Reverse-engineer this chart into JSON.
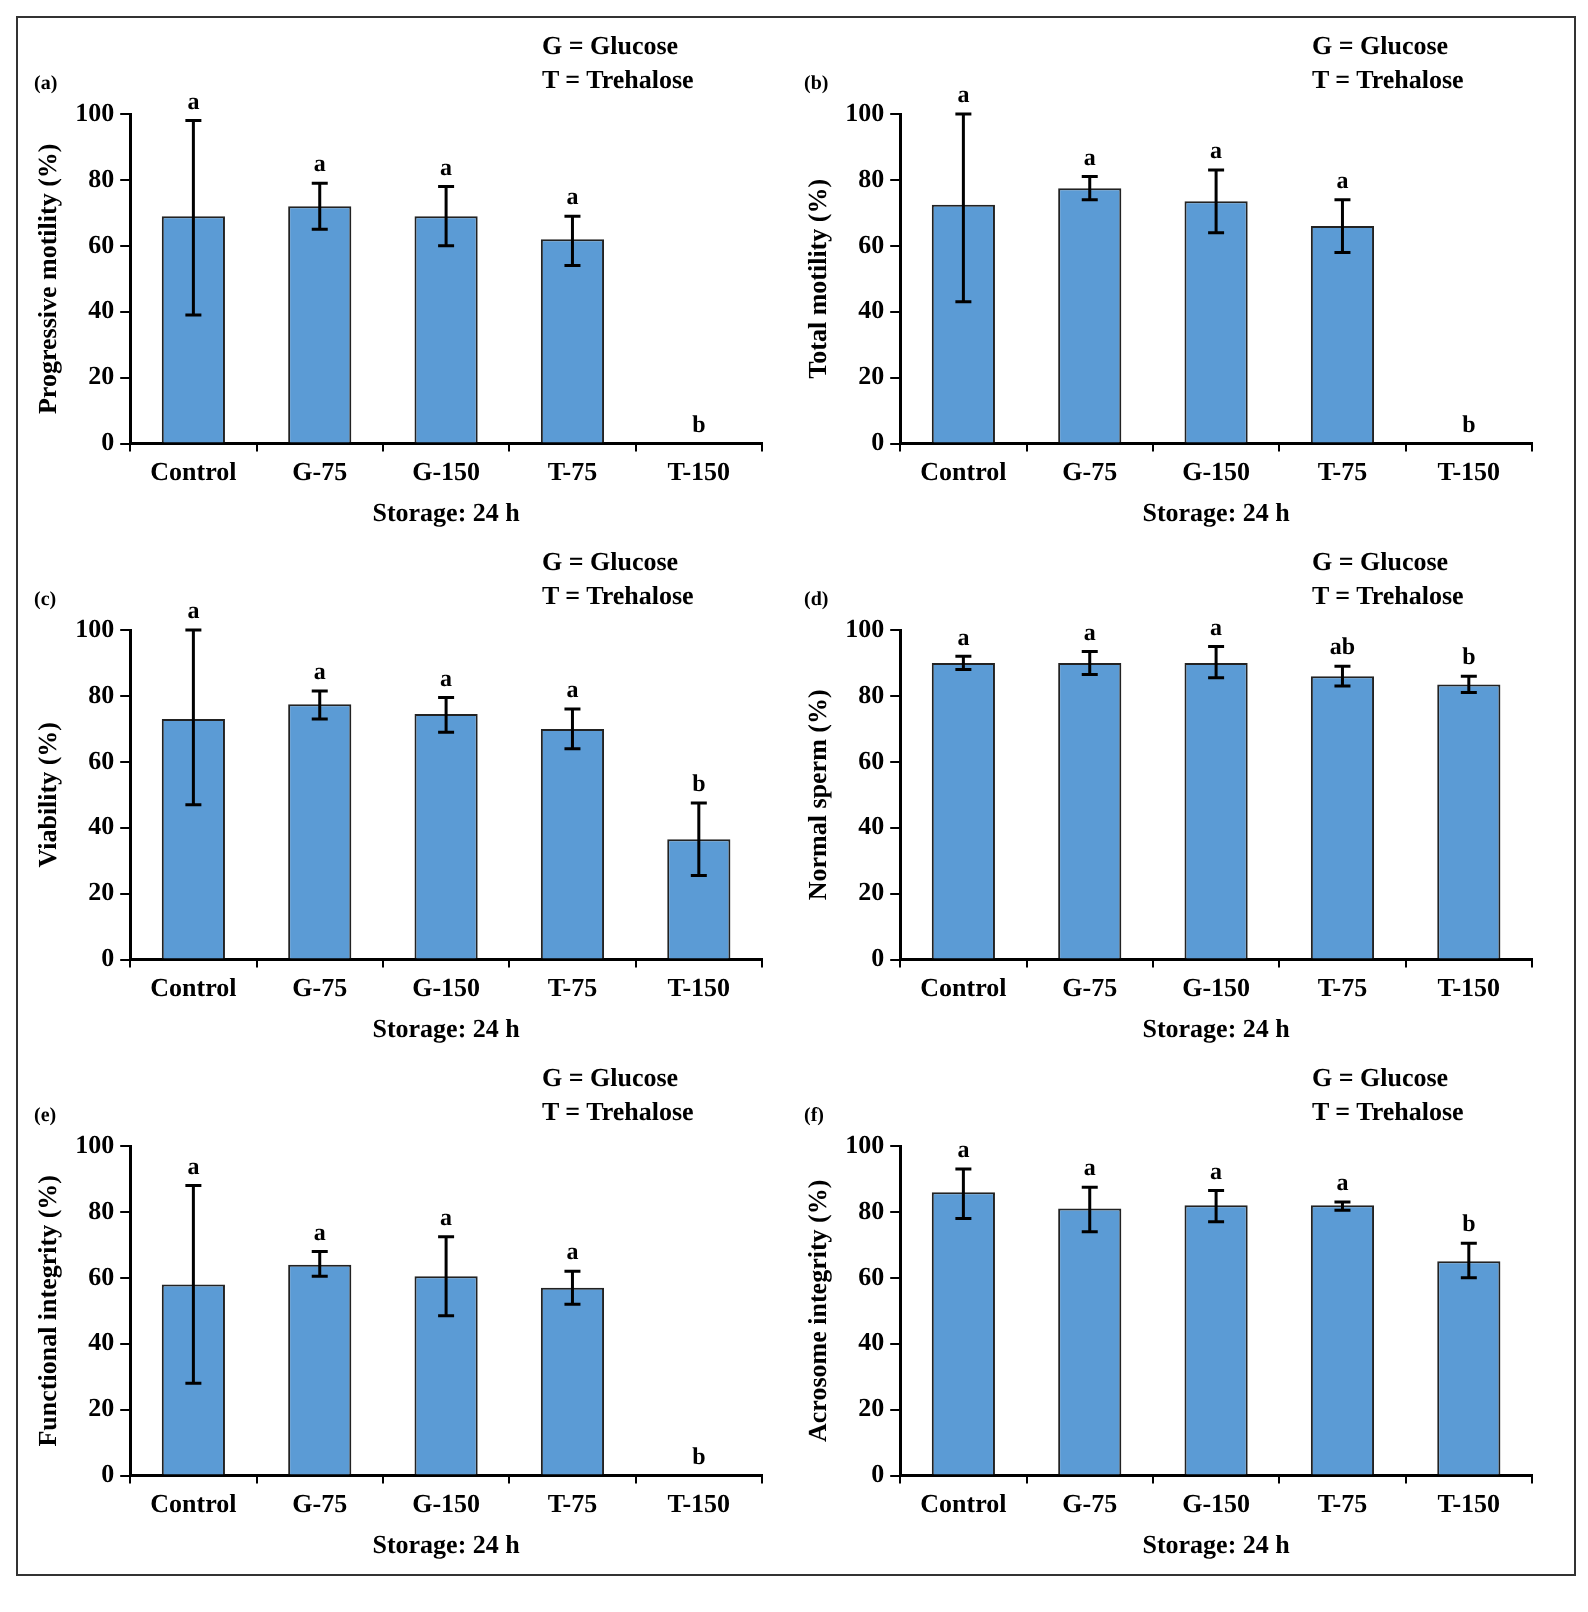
{
  "chart_data": [
    {
      "type": "bar",
      "ylabel": "Progressive motility (%)",
      "xlabel": "Storage: 24 h",
      "categories": [
        "Control",
        "G-75",
        "G-150",
        "T-75",
        "T-150"
      ],
      "values": [
        69,
        72,
        69,
        62,
        0
      ],
      "errors": [
        [
          39,
          98
        ],
        [
          65,
          79
        ],
        [
          60,
          78
        ],
        [
          54,
          69
        ],
        null
      ],
      "color": "#5b9bd5",
      "ylim": [
        0,
        100
      ],
      "yticks": [
        0,
        20,
        40,
        60,
        80,
        100
      ],
      "annotations": [
        "(a)",
        "G = Glucose",
        "T = Trehalose",
        {
          "text": "a",
          "x": "Control",
          "y": 98
        },
        {
          "text": "a",
          "x": "G-75",
          "y": 79
        },
        {
          "text": "a",
          "x": "G-150",
          "y": 78
        },
        {
          "text": "a",
          "x": "T-75",
          "y": 69
        },
        {
          "text": "b",
          "x": "T-150",
          "y": 0
        }
      ]
    },
    {
      "type": "bar",
      "ylabel": "Total motility (%)",
      "xlabel": "Storage: 24 h",
      "categories": [
        "Control",
        "G-75",
        "G-150",
        "T-75",
        "T-150"
      ],
      "values": [
        72.5,
        77.5,
        73.5,
        66,
        0
      ],
      "errors": [
        [
          43,
          100
        ],
        [
          74,
          81
        ],
        [
          64,
          83
        ],
        [
          58,
          74
        ],
        null
      ],
      "color": "#5b9bd5",
      "ylim": [
        0,
        100
      ],
      "yticks": [
        0,
        20,
        40,
        60,
        80,
        100
      ],
      "annotations": [
        "(b)",
        "G = Glucose",
        "T = Trehalose",
        {
          "text": "a",
          "x": "Control",
          "y": 100
        },
        {
          "text": "a",
          "x": "G-75",
          "y": 81
        },
        {
          "text": "a",
          "x": "G-150",
          "y": 83
        },
        {
          "text": "a",
          "x": "T-75",
          "y": 74
        },
        {
          "text": "b",
          "x": "T-150",
          "y": 0
        }
      ]
    },
    {
      "type": "bar",
      "ylabel": "Viability (%)",
      "xlabel": "Storage: 24 h",
      "categories": [
        "Control",
        "G-75",
        "G-150",
        "T-75",
        "T-150"
      ],
      "values": [
        73,
        77.5,
        74.5,
        70,
        36.5
      ],
      "errors": [
        [
          47,
          100
        ],
        [
          73,
          81.5
        ],
        [
          69,
          79.5
        ],
        [
          64,
          76
        ],
        [
          25.5,
          47.5
        ]
      ],
      "color": "#5b9bd5",
      "ylim": [
        0,
        100
      ],
      "yticks": [
        0,
        20,
        40,
        60,
        80,
        100
      ],
      "annotations": [
        "(c)",
        "G = Glucose",
        "T = Trehalose",
        {
          "text": "a",
          "x": "Control",
          "y": 100
        },
        {
          "text": "a",
          "x": "G-75",
          "y": 81.5
        },
        {
          "text": "a",
          "x": "G-150",
          "y": 79.5
        },
        {
          "text": "a",
          "x": "T-75",
          "y": 76
        },
        {
          "text": "b",
          "x": "T-150",
          "y": 47.5
        }
      ]
    },
    {
      "type": "bar",
      "ylabel": "Normal sperm (%)",
      "xlabel": "Storage: 24 h",
      "categories": [
        "Control",
        "G-75",
        "G-150",
        "T-75",
        "T-150"
      ],
      "values": [
        90,
        90,
        90,
        86,
        83.5
      ],
      "errors": [
        [
          88,
          92
        ],
        [
          86.5,
          93.5
        ],
        [
          85.5,
          95
        ],
        [
          83,
          89
        ],
        [
          81,
          86
        ]
      ],
      "color": "#5b9bd5",
      "ylim": [
        0,
        100
      ],
      "yticks": [
        0,
        20,
        40,
        60,
        80,
        100
      ],
      "annotations": [
        "(d)",
        "G = Glucose",
        "T = Trehalose",
        {
          "text": "a",
          "x": "Control",
          "y": 92
        },
        {
          "text": "a",
          "x": "G-75",
          "y": 93.5
        },
        {
          "text": "a",
          "x": "G-150",
          "y": 95
        },
        {
          "text": "ab",
          "x": "T-75",
          "y": 89
        },
        {
          "text": "b",
          "x": "T-150",
          "y": 86
        }
      ]
    },
    {
      "type": "bar",
      "ylabel": "Functional integrity (%)",
      "xlabel": "Storage: 24 h",
      "categories": [
        "Control",
        "G-75",
        "G-150",
        "T-75",
        "T-150"
      ],
      "values": [
        58,
        64,
        60.5,
        57,
        0
      ],
      "errors": [
        [
          28,
          88
        ],
        [
          60.5,
          68
        ],
        [
          48.5,
          72.5
        ],
        [
          52,
          62
        ],
        null
      ],
      "color": "#5b9bd5",
      "ylim": [
        0,
        100
      ],
      "yticks": [
        0,
        20,
        40,
        60,
        80,
        100
      ],
      "annotations": [
        "(e)",
        "G = Glucose",
        "T = Trehalose",
        {
          "text": "a",
          "x": "Control",
          "y": 88
        },
        {
          "text": "a",
          "x": "G-75",
          "y": 68
        },
        {
          "text": "a",
          "x": "G-150",
          "y": 72.5
        },
        {
          "text": "a",
          "x": "T-75",
          "y": 62
        },
        {
          "text": "b",
          "x": "T-150",
          "y": 0
        }
      ]
    },
    {
      "type": "bar",
      "ylabel": "Acrosome integrity (%)",
      "xlabel": "Storage: 24 h",
      "categories": [
        "Control",
        "G-75",
        "G-150",
        "T-75",
        "T-150"
      ],
      "values": [
        86,
        81,
        82,
        82,
        65
      ],
      "errors": [
        [
          78,
          93
        ],
        [
          74,
          87.5
        ],
        [
          77,
          86.5
        ],
        [
          80.5,
          83
        ],
        [
          60,
          70.5
        ]
      ],
      "color": "#5b9bd5",
      "ylim": [
        0,
        100
      ],
      "yticks": [
        0,
        20,
        40,
        60,
        80,
        100
      ],
      "annotations": [
        "(f)",
        "G = Glucose",
        "T = Trehalose",
        {
          "text": "a",
          "x": "Control",
          "y": 93
        },
        {
          "text": "a",
          "x": "G-75",
          "y": 87.5
        },
        {
          "text": "a",
          "x": "G-150",
          "y": 86.5
        },
        {
          "text": "a",
          "x": "T-75",
          "y": 83
        },
        {
          "text": "b",
          "x": "T-150",
          "y": 70.5
        }
      ]
    }
  ]
}
